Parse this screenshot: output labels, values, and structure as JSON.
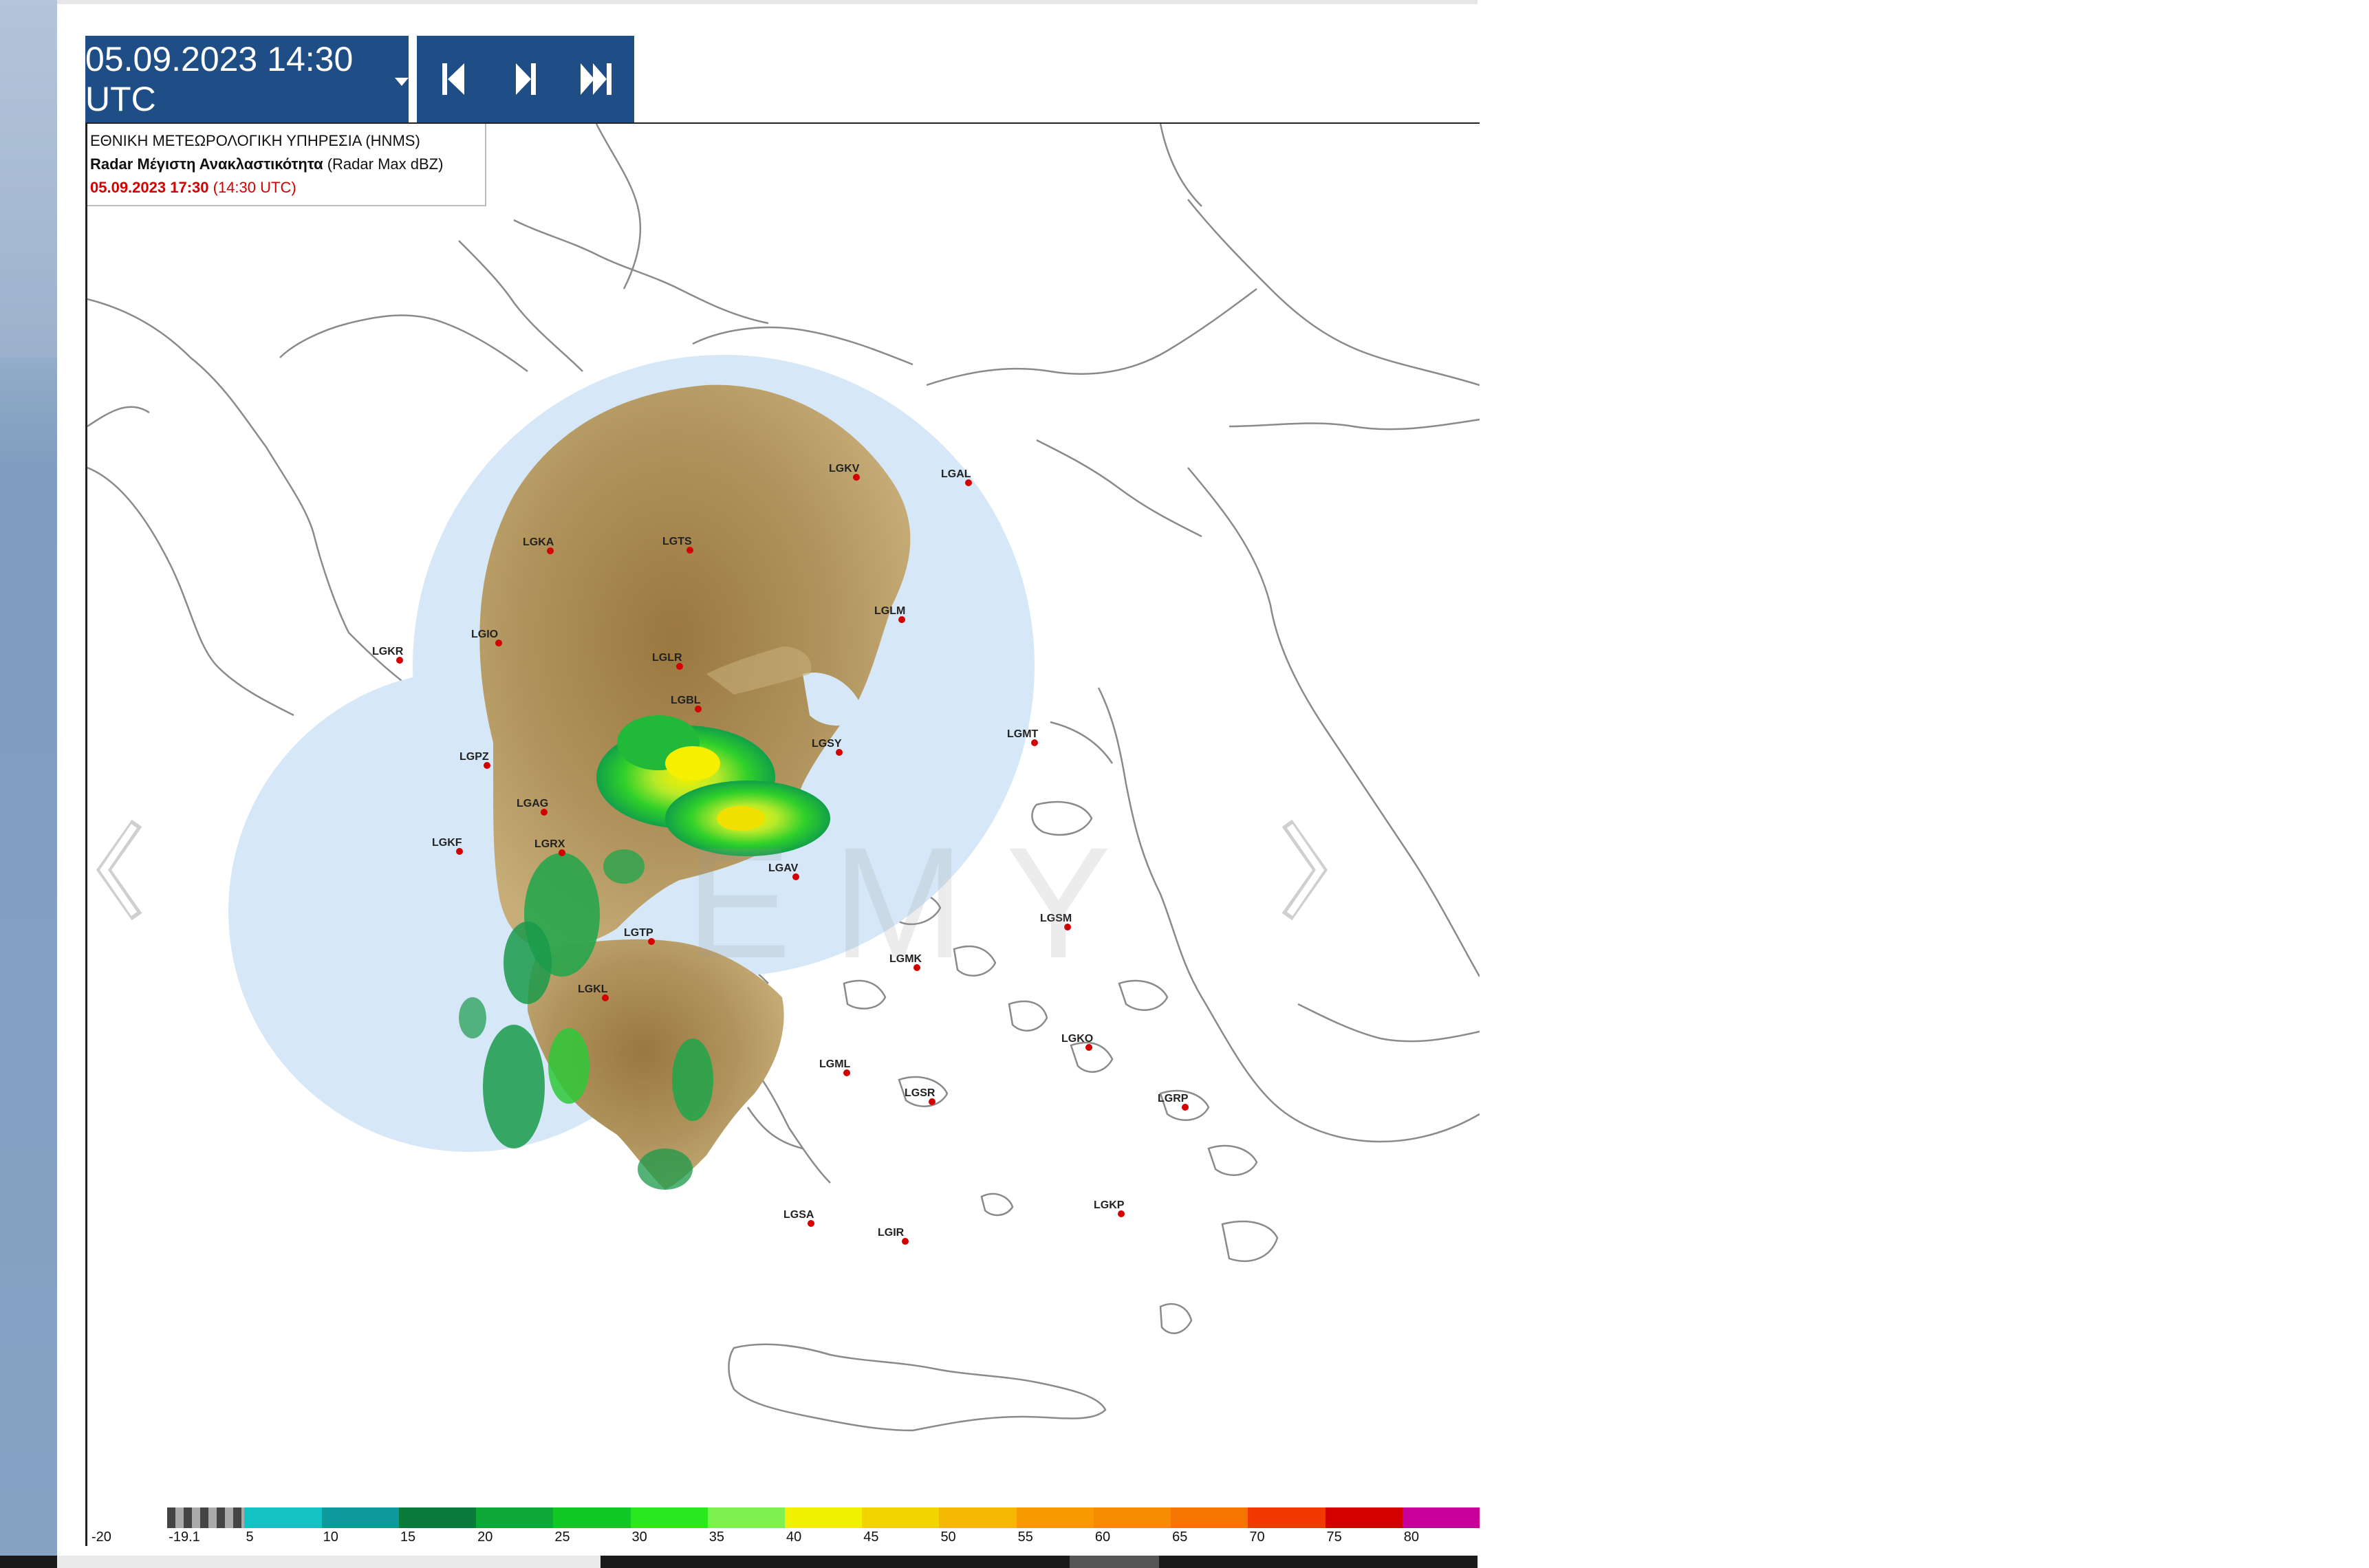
{
  "controls": {
    "datetime": "05.09.2023 14:30 UTC",
    "nav_first": "skip-to-first-icon",
    "nav_next": "step-forward-icon",
    "nav_last": "skip-to-last-icon"
  },
  "info": {
    "agency": "ΕΘΝΙΚΗ ΜΕΤΕΩΡΟΛΟΓΙΚΗ ΥΠΗΡΕΣΙΑ (HNMS)",
    "product_bold": "Radar Μέγιστη Ανακλαστικότητα",
    "product_suffix": "(Radar Max dBZ)",
    "local_time": "05.09.2023 17:30",
    "utc_time": "(14:30 UTC)"
  },
  "watermark": "EMY",
  "stations": [
    "LGKV",
    "LGAL",
    "LGKA",
    "LGTS",
    "LGLM",
    "LGIO",
    "LGKR",
    "LGLR",
    "LGBL",
    "LGMT",
    "LGSY",
    "LGPZ",
    "LGAG",
    "LGKF",
    "LGRX",
    "LGAV",
    "LGSM",
    "LGTP",
    "LGMK",
    "LGKL",
    "LGKO",
    "LGML",
    "LGSR",
    "LGRP",
    "LGKP",
    "LGSA",
    "LGIR"
  ],
  "scale": {
    "colors": [
      "#ffffff",
      "#8a8a8a",
      "#14c4c4",
      "#0e9a9a",
      "#0a7a3c",
      "#0ea838",
      "#11c826",
      "#2ae81e",
      "#7ef050",
      "#f0f000",
      "#f2d400",
      "#f6b800",
      "#f69a00",
      "#f68a00",
      "#f67400",
      "#f23a00",
      "#d40000",
      "#c8009a"
    ],
    "labels": [
      "-20",
      "-19.1",
      "5",
      "10",
      "15",
      "20",
      "25",
      "30",
      "35",
      "40",
      "45",
      "50",
      "55",
      "60",
      "65",
      "70",
      "75",
      "80"
    ]
  },
  "colors": {
    "control_bg": "#1f4e86",
    "radar_coverage": "#d6e8f8",
    "terrain": "#a88a52",
    "station_dot": "#d40000"
  }
}
